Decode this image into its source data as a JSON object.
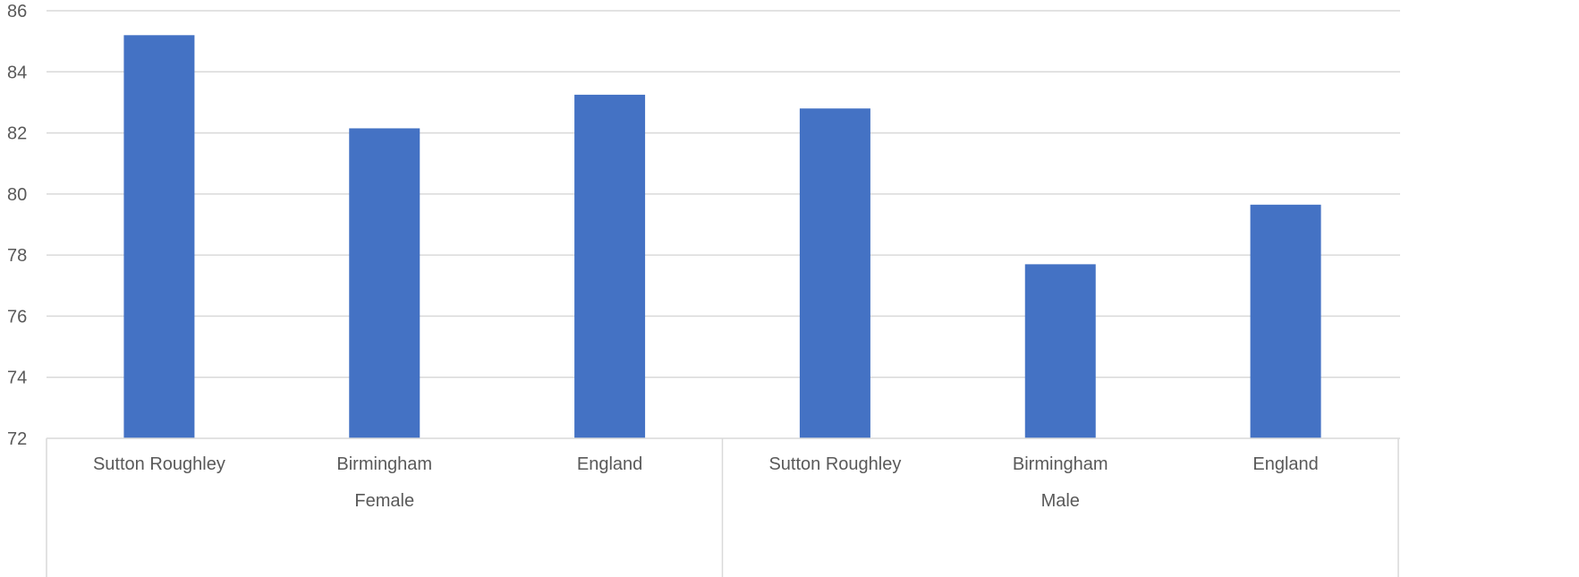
{
  "chart_data": {
    "type": "bar",
    "title": "",
    "xlabel": "",
    "ylabel": "",
    "ylim": [
      72,
      86
    ],
    "yticks": [
      72,
      74,
      76,
      78,
      80,
      82,
      84,
      86
    ],
    "grid": true,
    "legend": "none",
    "bar_color": "#4472C4",
    "groups": [
      {
        "name": "Female",
        "categories": [
          "Sutton Roughley",
          "Birmingham",
          "England"
        ],
        "values": [
          85.2,
          82.15,
          83.25
        ]
      },
      {
        "name": "Male",
        "categories": [
          "Sutton Roughley",
          "Birmingham",
          "England"
        ],
        "values": [
          82.8,
          77.7,
          79.65
        ]
      }
    ]
  }
}
